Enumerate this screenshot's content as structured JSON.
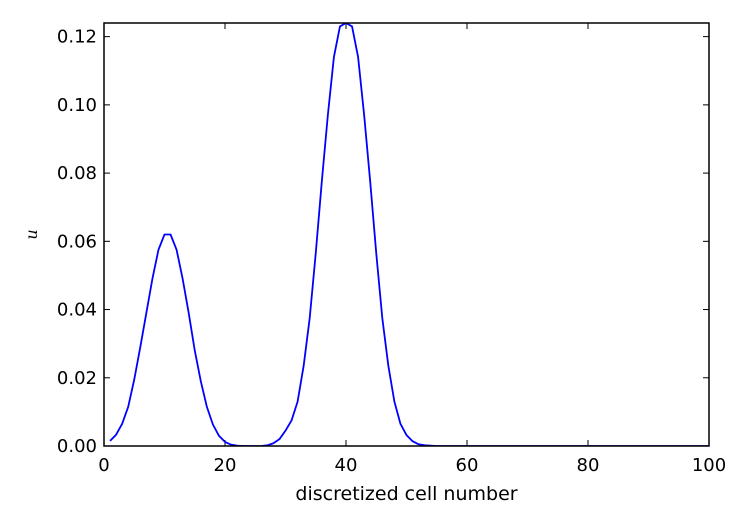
{
  "chart_data": {
    "type": "line",
    "xlabel": "discretized cell number",
    "ylabel": "u",
    "xlim": [
      0,
      100
    ],
    "ylim": [
      0,
      0.124
    ],
    "grid": false,
    "legend": "none",
    "x_ticks": [
      0,
      20,
      40,
      60,
      80,
      100
    ],
    "x_tick_labels": [
      "0",
      "20",
      "40",
      "60",
      "80",
      "100"
    ],
    "y_ticks": [
      0.0,
      0.02,
      0.04,
      0.06,
      0.08,
      0.1,
      0.12
    ],
    "y_tick_labels": [
      "0.00",
      "0.02",
      "0.04",
      "0.06",
      "0.08",
      "0.10",
      "0.12"
    ],
    "series": [
      {
        "color": "#0000ff",
        "x": [
          1,
          2,
          3,
          4,
          5,
          6,
          7,
          8,
          9,
          10,
          11,
          12,
          13,
          14,
          15,
          16,
          17,
          18,
          19,
          20,
          21,
          22,
          23,
          24,
          25,
          26,
          27,
          28,
          29,
          30,
          31,
          32,
          33,
          34,
          35,
          36,
          37,
          38,
          39,
          40,
          41,
          42,
          43,
          44,
          45,
          46,
          47,
          48,
          49,
          50,
          51,
          52,
          53,
          54,
          55,
          56,
          57,
          58,
          59,
          60,
          61,
          62,
          63,
          64,
          65,
          66,
          67,
          68,
          69,
          70,
          71,
          72,
          73,
          74,
          75,
          76,
          77,
          78,
          79,
          80,
          81,
          82,
          83,
          84,
          85,
          86,
          87,
          88,
          89,
          90,
          91,
          92,
          93,
          94,
          95,
          96,
          97,
          98,
          99,
          100
        ],
        "values": [
          0.0015,
          0.0033,
          0.0065,
          0.0115,
          0.0195,
          0.029,
          0.039,
          0.049,
          0.0575,
          0.062,
          0.062,
          0.0575,
          0.049,
          0.039,
          0.028,
          0.019,
          0.0115,
          0.0063,
          0.003,
          0.0012,
          0.0004,
          0.0001,
          0.0,
          0.0,
          0.0,
          0.0,
          0.0002,
          0.0008,
          0.002,
          0.0045,
          0.0075,
          0.013,
          0.0235,
          0.0375,
          0.0565,
          0.0775,
          0.097,
          0.114,
          0.123,
          0.124,
          0.123,
          0.114,
          0.097,
          0.0775,
          0.0565,
          0.0375,
          0.0235,
          0.013,
          0.0065,
          0.0032,
          0.0014,
          0.0005,
          0.0002,
          0.0001,
          0.0,
          0.0,
          0.0,
          0.0,
          0.0,
          0.0,
          0.0,
          0.0,
          0.0,
          0.0,
          0.0,
          0.0,
          0.0,
          0.0,
          0.0,
          0.0,
          0.0,
          0.0,
          0.0,
          0.0,
          0.0,
          0.0,
          0.0,
          0.0,
          0.0,
          0.0,
          0.0,
          0.0,
          0.0,
          0.0,
          0.0,
          0.0,
          0.0,
          0.0,
          0.0,
          0.0,
          0.0,
          0.0,
          0.0,
          0.0,
          0.0,
          0.0,
          0.0,
          0.0,
          0.0,
          0.0
        ]
      }
    ]
  }
}
